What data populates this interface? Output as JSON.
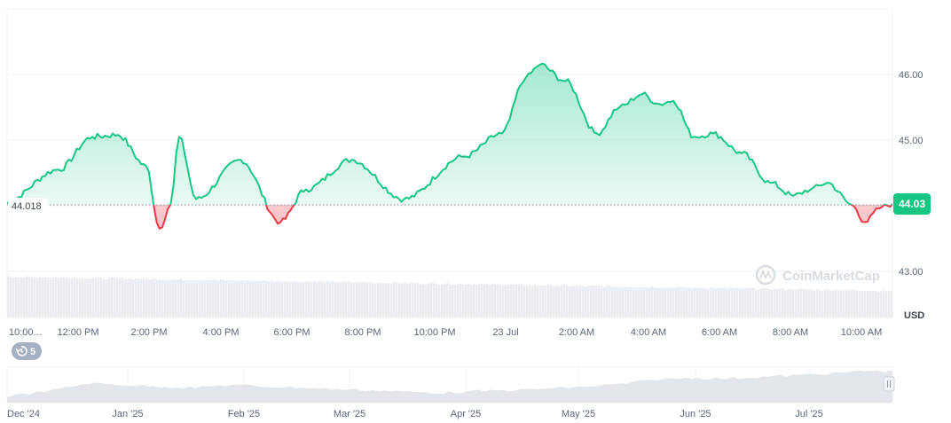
{
  "chart_data": {
    "type": "area",
    "currency": "USD",
    "reference_price": "44.018",
    "current_price": "44.03",
    "y_ticks": [
      "46.00",
      "45.00",
      "44.00",
      "43.00"
    ],
    "ylim": [
      42.98,
      47.02
    ],
    "x_tick_labels": [
      "10:00...",
      "12:00 PM",
      "2:00 PM",
      "4:00 PM",
      "6:00 PM",
      "8:00 PM",
      "10:00 PM",
      "23 Jul",
      "2:00 AM",
      "4:00 AM",
      "6:00 AM",
      "8:00 AM",
      "10:00 AM"
    ],
    "x": [
      "09:53",
      "11:27",
      "12:24",
      "13:07",
      "13:55",
      "14:17",
      "14:36",
      "14:50",
      "15:19",
      "16:34",
      "17:41",
      "18:24",
      "19:41",
      "21:09",
      "22:50",
      "23:54",
      "00:34",
      "00:58",
      "01:41",
      "02:34",
      "03:12",
      "03:50",
      "04:19",
      "04:43",
      "05:17",
      "05:50",
      "06:38",
      "07:26",
      "08:05",
      "08:34",
      "09:02",
      "09:46",
      "10:05",
      "10:34",
      "10:53"
    ],
    "price": [
      44.03,
      44.55,
      45.05,
      45.08,
      44.6,
      43.65,
      44.02,
      45.05,
      44.1,
      44.7,
      43.75,
      44.25,
      44.7,
      44.1,
      44.75,
      45.1,
      45.95,
      46.15,
      45.9,
      45.1,
      45.5,
      45.7,
      45.55,
      45.6,
      45.05,
      45.1,
      44.8,
      44.35,
      44.15,
      44.25,
      44.35,
      44.0,
      43.75,
      43.98,
      44.03
    ],
    "volume_series_label": "",
    "watermark": "CoinMarketCap",
    "history_badge": "5",
    "range_labels": [
      "Dec '24",
      "Jan '25",
      "Feb '25",
      "Mar '25",
      "Apr '25",
      "May '25",
      "Jun '25",
      "Jul '25"
    ],
    "colors": {
      "up": "#16c784",
      "down": "#ea3943",
      "grid": "#eff2f5",
      "text": "#58667e",
      "volume": "#e9ecf1",
      "navigator": "#e3e7ec"
    }
  }
}
